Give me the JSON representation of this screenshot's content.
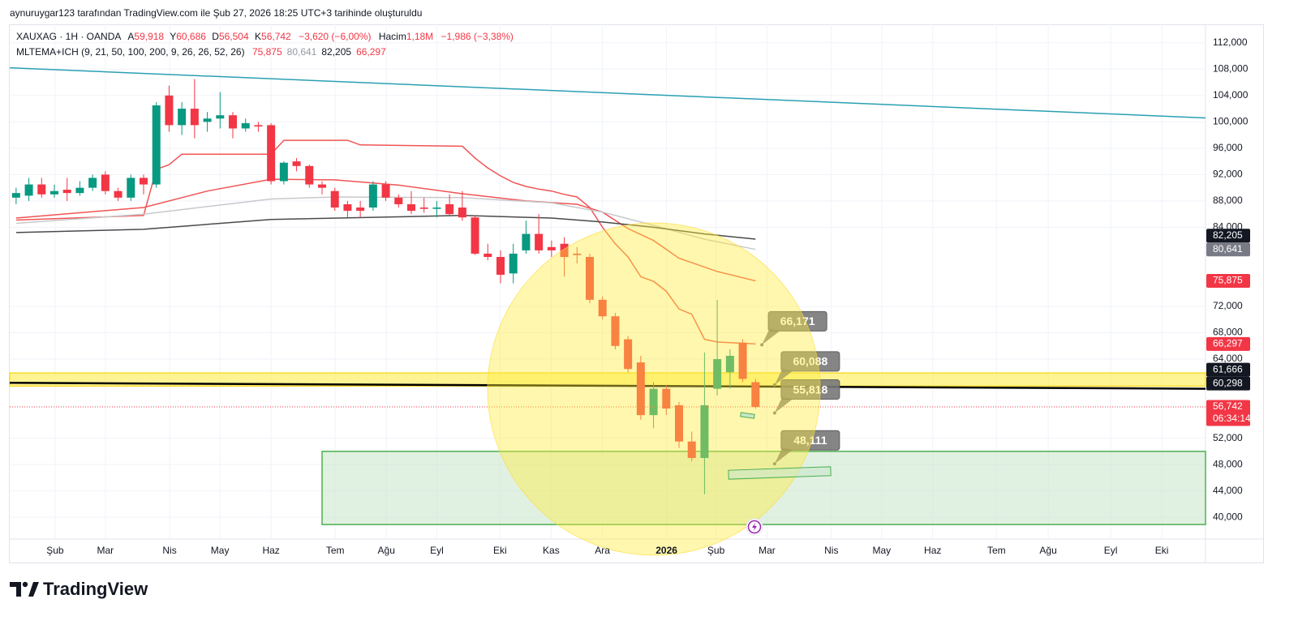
{
  "header": {
    "credit": "aynuruygar123 tarafından TradingView.com ile Şub 27, 2026 18:25 UTC+3 tarihinde oluşturuldu",
    "symbol": "XAUXAG · 1H · OANDA",
    "ohlc": [
      {
        "key": "A",
        "label": "59,918"
      },
      {
        "key": "Y",
        "label": "60,686"
      },
      {
        "key": "D",
        "label": "56,504"
      },
      {
        "key": "K",
        "label": "56,742"
      }
    ],
    "change": "−3,620 (−6,00%)",
    "volume_key": "Hacim",
    "volume": "1,18M",
    "volume_change": "−1,986 (−3,38%)",
    "indicator": "MLTEMA+ICH (9, 21, 50, 100, 200, 9, 26, 26, 52, 26)",
    "indicator_values": [
      {
        "label": "75,875",
        "color": "#f23645"
      },
      {
        "label": "80,641",
        "color": "#9598a1"
      },
      {
        "label": "82,205",
        "color": "#131722"
      },
      {
        "label": "66,297",
        "color": "#f23645"
      }
    ]
  },
  "chart_data": {
    "type": "candlestick",
    "up_color": "#089981",
    "down_color": "#f23645",
    "grid": true,
    "xlim": [
      -0.5,
      93.3
    ],
    "ylim": [
      36700,
      114800
    ],
    "xticks": [
      {
        "value": 3.06,
        "label": "Şub"
      },
      {
        "value": 7.0,
        "label": "Mar"
      },
      {
        "value": 12.04,
        "label": "Nis"
      },
      {
        "value": 15.99,
        "label": "May"
      },
      {
        "value": 20.0,
        "label": "Haz"
      },
      {
        "value": 25.03,
        "label": "Tem"
      },
      {
        "value": 29.04,
        "label": "Ağu"
      },
      {
        "value": 33.0,
        "label": "Eyl"
      },
      {
        "value": 37.96,
        "label": "Eki"
      },
      {
        "value": 41.97,
        "label": "Kas"
      },
      {
        "value": 45.99,
        "label": "Ara"
      },
      {
        "value": 51.02,
        "label": "2026",
        "major": true
      },
      {
        "value": 54.9,
        "label": "Şub"
      },
      {
        "value": 58.9,
        "label": "Mar"
      },
      {
        "value": 63.95,
        "label": "Nis"
      },
      {
        "value": 67.9,
        "label": "May"
      },
      {
        "value": 71.9,
        "label": "Haz"
      },
      {
        "value": 76.9,
        "label": "Tem"
      },
      {
        "value": 80.96,
        "label": "Ağu"
      },
      {
        "value": 85.86,
        "label": "Eyl"
      },
      {
        "value": 89.87,
        "label": "Eki"
      }
    ],
    "yticks": [
      {
        "value": 40000,
        "label": "40,000"
      },
      {
        "value": 44000,
        "label": "44,000"
      },
      {
        "value": 48000,
        "label": "48,000"
      },
      {
        "value": 52000,
        "label": "52,000"
      },
      {
        "value": 64000,
        "label": "64,000"
      },
      {
        "value": 68000,
        "label": "68,000"
      },
      {
        "value": 72000,
        "label": "72,000"
      },
      {
        "value": 84000,
        "label": "84,000"
      },
      {
        "value": 88000,
        "label": "88,000"
      },
      {
        "value": 92000,
        "label": "92,000"
      },
      {
        "value": 96000,
        "label": "96,000"
      },
      {
        "value": 100000,
        "label": "100,000"
      },
      {
        "value": 104000,
        "label": "104,000"
      },
      {
        "value": 108000,
        "label": "108,000"
      },
      {
        "value": 112000,
        "label": "112,000"
      }
    ],
    "x": [
      0,
      1,
      2,
      3,
      4,
      5,
      6,
      7,
      8,
      9,
      10,
      11,
      12,
      13,
      14,
      15,
      16,
      17,
      18,
      19,
      20,
      21,
      22,
      23,
      24,
      25,
      26,
      27,
      28,
      29,
      30,
      31,
      32,
      33,
      34,
      35,
      36,
      37,
      38,
      39,
      40,
      41,
      42,
      43,
      44,
      45,
      46,
      47,
      48,
      49,
      50,
      51,
      52,
      53,
      54,
      55,
      56,
      57,
      58
    ],
    "open": [
      88500,
      88800,
      90500,
      89000,
      89700,
      89200,
      90000,
      92000,
      89500,
      88500,
      91500,
      90500,
      104000,
      99500,
      102000,
      100000,
      100500,
      101000,
      99000,
      99500,
      99500,
      91000,
      94000,
      93300,
      90500,
      89500,
      87500,
      87000,
      87000,
      90500,
      88500,
      87500,
      87000,
      86800,
      87500,
      87000,
      85500,
      80000,
      79500,
      77000,
      80500,
      83000,
      81000,
      81500,
      80000,
      79500,
      73000,
      70500,
      67000,
      63500,
      55500,
      59500,
      57000,
      51500,
      49000,
      59500,
      62000,
      66500,
      60500
    ],
    "high": [
      90000,
      91500,
      91500,
      90500,
      91500,
      91000,
      92000,
      92500,
      90000,
      92000,
      92000,
      103000,
      105500,
      103000,
      106500,
      101500,
      104500,
      101500,
      100500,
      100000,
      99800,
      94000,
      94500,
      93500,
      91000,
      90000,
      88000,
      88000,
      91000,
      91000,
      89000,
      89500,
      88500,
      88000,
      89000,
      89500,
      85800,
      81500,
      80500,
      81500,
      85000,
      86000,
      82000,
      82500,
      81000,
      80000,
      73500,
      71000,
      67500,
      64500,
      60500,
      60000,
      57500,
      53000,
      65000,
      73000,
      65500,
      67000,
      61000
    ],
    "low": [
      87500,
      88000,
      88500,
      88500,
      88000,
      88800,
      89500,
      89000,
      88000,
      88000,
      89000,
      90000,
      98500,
      98000,
      97500,
      98500,
      99000,
      97500,
      98500,
      98500,
      90500,
      90500,
      92500,
      90000,
      89000,
      86500,
      85500,
      85500,
      86500,
      88000,
      87000,
      86000,
      86200,
      85500,
      85800,
      85000,
      79800,
      79000,
      75500,
      75500,
      80000,
      80000,
      79500,
      76500,
      78500,
      72500,
      70000,
      65500,
      62000,
      54800,
      53500,
      55500,
      50500,
      48500,
      43500,
      58500,
      59500,
      60500,
      56500
    ],
    "close": [
      89200,
      90500,
      89000,
      89500,
      89200,
      90000,
      91500,
      89500,
      88500,
      91500,
      90500,
      102500,
      99500,
      102000,
      99500,
      100500,
      101000,
      99000,
      99800,
      99300,
      91000,
      93800,
      93300,
      90500,
      90000,
      87000,
      86500,
      86500,
      90500,
      88500,
      87500,
      86500,
      86800,
      87000,
      86000,
      85500,
      80000,
      79500,
      76800,
      80000,
      83000,
      80500,
      80500,
      79500,
      79800,
      73000,
      70500,
      66000,
      62500,
      55500,
      59500,
      56500,
      51500,
      49000,
      57000,
      64000,
      64500,
      61000,
      56742
    ],
    "lines": [
      {
        "color": "#f05454",
        "x": [
          0,
          10,
          11,
          12,
          13,
          20,
          21,
          26,
          27,
          35,
          36,
          37,
          38,
          39,
          40,
          41,
          42,
          43,
          44,
          45,
          46,
          47,
          48,
          49,
          50,
          51,
          52,
          53,
          54,
          55,
          56,
          57,
          58
        ],
        "values": [
          85100,
          85800,
          92800,
          93500,
          95100,
          95100,
          97200,
          97200,
          96500,
          96300,
          94500,
          93000,
          91800,
          90800,
          90200,
          89800,
          89500,
          89000,
          88600,
          87000,
          84000,
          81500,
          79500,
          76500,
          75800,
          74300,
          71600,
          70800,
          67000,
          66600,
          66500,
          66400,
          66297
        ]
      },
      {
        "color": "#f05454",
        "x": [
          0,
          10,
          15,
          20,
          25,
          30,
          35,
          40,
          44,
          46,
          48,
          50,
          52,
          55,
          58
        ],
        "values": [
          85400,
          87000,
          89500,
          91300,
          91200,
          90400,
          89100,
          88000,
          87500,
          86300,
          83800,
          82000,
          79300,
          77300,
          75875
        ]
      },
      {
        "color": "#c8c9cc",
        "x": [
          0,
          10,
          20,
          25,
          35,
          42,
          46,
          50,
          54,
          58
        ],
        "values": [
          84600,
          86000,
          88300,
          88600,
          88500,
          87700,
          86300,
          84300,
          82200,
          80641
        ]
      },
      {
        "color": "#4a4a4a",
        "x": [
          0,
          10,
          20,
          35,
          42,
          46,
          50,
          54,
          58
        ],
        "values": [
          83200,
          83700,
          85200,
          85800,
          85400,
          84800,
          84000,
          83000,
          82205
        ]
      }
    ],
    "trend_lines": [
      {
        "color": "#2a9fb3",
        "x": [
          -0.5,
          93.3
        ],
        "values": [
          108200,
          100600
        ],
        "width": 1.5
      },
      {
        "color": "#000000",
        "x": [
          -0.5,
          93.3
        ],
        "values": [
          60400,
          59500
        ],
        "width": 2.5
      }
    ],
    "zones": [
      {
        "color": "#ffeb3b",
        "border": "#f7dc2c",
        "x": [
          -0.5,
          93.3
        ],
        "values": [
          61900,
          59900
        ]
      },
      {
        "color": "#c8e6c9",
        "border": "#4caf50",
        "x": [
          24.0,
          93.3
        ],
        "values": [
          50000,
          38900
        ]
      }
    ],
    "callouts": [
      {
        "x": 58.5,
        "value": 66171,
        "label": "66,171"
      },
      {
        "x": 59.5,
        "value": 60088,
        "label": "60,088"
      },
      {
        "x": 59.5,
        "value": 55818,
        "label": "55,818"
      },
      {
        "x": 59.5,
        "value": 48111,
        "label": "48,111"
      }
    ],
    "price_labels": [
      {
        "value": 82205,
        "label": "82,205",
        "color": "#131722"
      },
      {
        "value": 80641,
        "label": "80,641",
        "color": "#787b86"
      },
      {
        "value": 75875,
        "label": "75,875",
        "color": "#f23645"
      },
      {
        "value": 66297,
        "label": "66,297",
        "color": "#f23645"
      },
      {
        "value": 61666,
        "label": "61,666",
        "color": "#131722"
      },
      {
        "value": 60298,
        "label": "60,298",
        "color": "#131722"
      },
      {
        "value": 56742,
        "label": "56,742",
        "color": "#f23645",
        "countdown": "06:34:14",
        "current": true
      }
    ]
  },
  "brand": "TradingView"
}
